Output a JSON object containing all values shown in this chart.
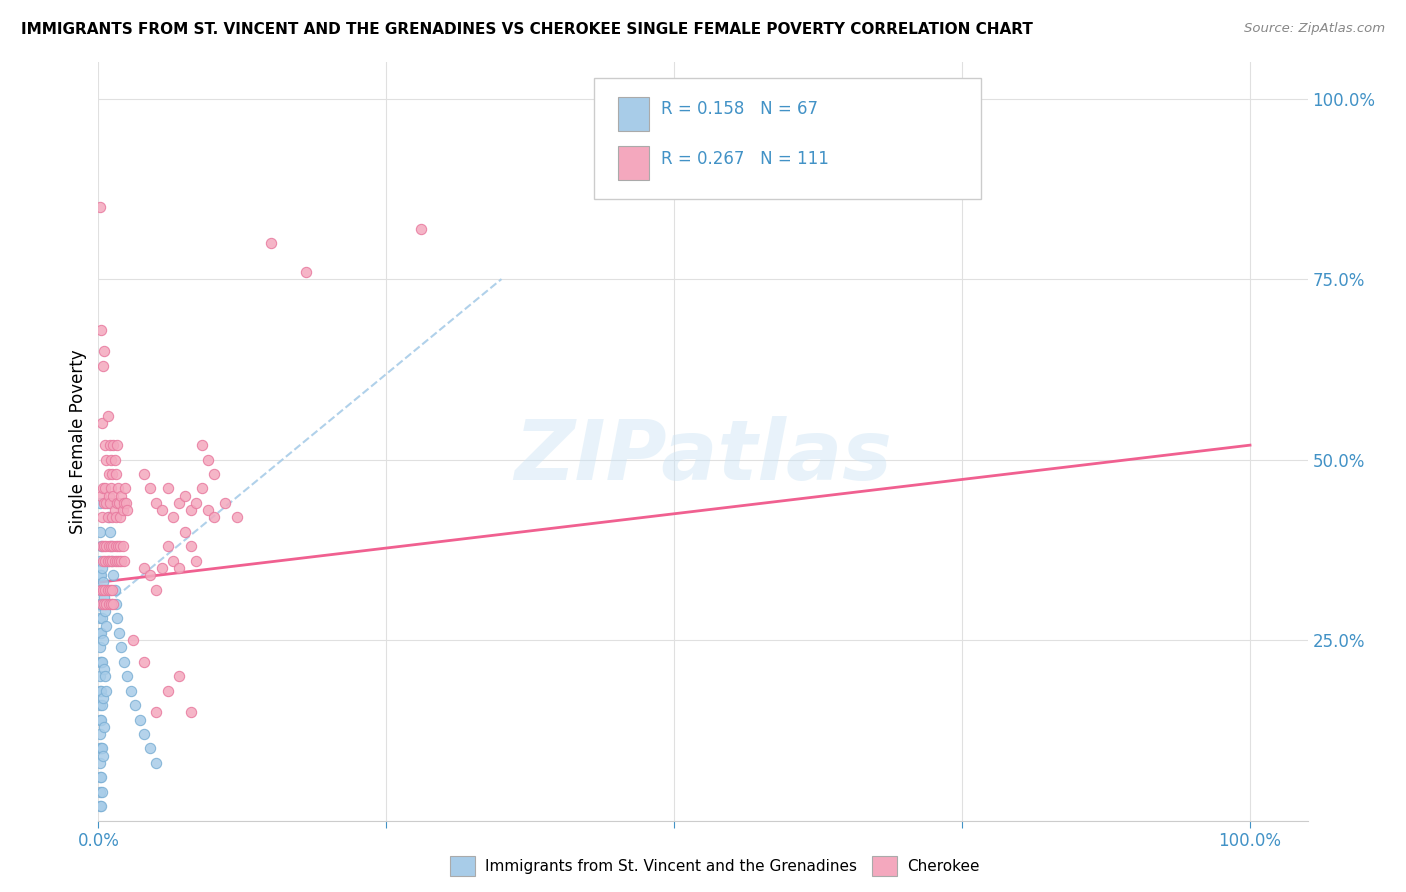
{
  "title": "IMMIGRANTS FROM ST. VINCENT AND THE GRENADINES VS CHEROKEE SINGLE FEMALE POVERTY CORRELATION CHART",
  "source": "Source: ZipAtlas.com",
  "ylabel": "Single Female Poverty",
  "watermark": "ZIPatlas",
  "legend_label1": "Immigrants from St. Vincent and the Grenadines",
  "legend_label2": "Cherokee",
  "blue_color": "#a8cce8",
  "blue_edge_color": "#7bafd4",
  "pink_color": "#f4a8be",
  "pink_edge_color": "#e87a9f",
  "blue_line_color": "#a8cce8",
  "pink_line_color": "#f06090",
  "tick_color": "#4292c6",
  "grid_color": "#e0e0e0",
  "blue_scatter": [
    [
      0.001,
      0.44
    ],
    [
      0.001,
      0.4
    ],
    [
      0.001,
      0.36
    ],
    [
      0.001,
      0.34
    ],
    [
      0.001,
      0.32
    ],
    [
      0.001,
      0.3
    ],
    [
      0.001,
      0.28
    ],
    [
      0.001,
      0.26
    ],
    [
      0.001,
      0.24
    ],
    [
      0.001,
      0.22
    ],
    [
      0.001,
      0.2
    ],
    [
      0.001,
      0.18
    ],
    [
      0.001,
      0.16
    ],
    [
      0.001,
      0.14
    ],
    [
      0.001,
      0.12
    ],
    [
      0.001,
      0.1
    ],
    [
      0.001,
      0.08
    ],
    [
      0.001,
      0.06
    ],
    [
      0.001,
      0.04
    ],
    [
      0.001,
      0.02
    ],
    [
      0.002,
      0.38
    ],
    [
      0.002,
      0.34
    ],
    [
      0.002,
      0.3
    ],
    [
      0.002,
      0.26
    ],
    [
      0.002,
      0.22
    ],
    [
      0.002,
      0.18
    ],
    [
      0.002,
      0.14
    ],
    [
      0.002,
      0.1
    ],
    [
      0.002,
      0.06
    ],
    [
      0.002,
      0.02
    ],
    [
      0.003,
      0.35
    ],
    [
      0.003,
      0.28
    ],
    [
      0.003,
      0.22
    ],
    [
      0.003,
      0.16
    ],
    [
      0.003,
      0.1
    ],
    [
      0.003,
      0.04
    ],
    [
      0.004,
      0.33
    ],
    [
      0.004,
      0.25
    ],
    [
      0.004,
      0.17
    ],
    [
      0.004,
      0.09
    ],
    [
      0.005,
      0.31
    ],
    [
      0.005,
      0.21
    ],
    [
      0.005,
      0.13
    ],
    [
      0.006,
      0.29
    ],
    [
      0.006,
      0.2
    ],
    [
      0.007,
      0.27
    ],
    [
      0.007,
      0.18
    ],
    [
      0.008,
      0.44
    ],
    [
      0.008,
      0.36
    ],
    [
      0.009,
      0.42
    ],
    [
      0.01,
      0.4
    ],
    [
      0.011,
      0.38
    ],
    [
      0.012,
      0.36
    ],
    [
      0.013,
      0.34
    ],
    [
      0.014,
      0.32
    ],
    [
      0.015,
      0.3
    ],
    [
      0.016,
      0.28
    ],
    [
      0.018,
      0.26
    ],
    [
      0.02,
      0.24
    ],
    [
      0.022,
      0.22
    ],
    [
      0.025,
      0.2
    ],
    [
      0.028,
      0.18
    ],
    [
      0.032,
      0.16
    ],
    [
      0.036,
      0.14
    ],
    [
      0.04,
      0.12
    ],
    [
      0.045,
      0.1
    ],
    [
      0.05,
      0.08
    ]
  ],
  "pink_scatter": [
    [
      0.001,
      0.85
    ],
    [
      0.002,
      0.68
    ],
    [
      0.004,
      0.63
    ],
    [
      0.005,
      0.65
    ],
    [
      0.003,
      0.55
    ],
    [
      0.006,
      0.52
    ],
    [
      0.007,
      0.5
    ],
    [
      0.008,
      0.56
    ],
    [
      0.009,
      0.48
    ],
    [
      0.01,
      0.52
    ],
    [
      0.011,
      0.5
    ],
    [
      0.012,
      0.48
    ],
    [
      0.013,
      0.52
    ],
    [
      0.014,
      0.5
    ],
    [
      0.015,
      0.48
    ],
    [
      0.016,
      0.52
    ],
    [
      0.002,
      0.45
    ],
    [
      0.003,
      0.42
    ],
    [
      0.004,
      0.46
    ],
    [
      0.005,
      0.44
    ],
    [
      0.006,
      0.46
    ],
    [
      0.007,
      0.44
    ],
    [
      0.008,
      0.42
    ],
    [
      0.009,
      0.45
    ],
    [
      0.01,
      0.44
    ],
    [
      0.011,
      0.46
    ],
    [
      0.012,
      0.42
    ],
    [
      0.013,
      0.45
    ],
    [
      0.014,
      0.43
    ],
    [
      0.015,
      0.42
    ],
    [
      0.016,
      0.44
    ],
    [
      0.017,
      0.46
    ],
    [
      0.018,
      0.44
    ],
    [
      0.019,
      0.42
    ],
    [
      0.02,
      0.45
    ],
    [
      0.021,
      0.43
    ],
    [
      0.022,
      0.44
    ],
    [
      0.023,
      0.46
    ],
    [
      0.024,
      0.44
    ],
    [
      0.025,
      0.43
    ],
    [
      0.003,
      0.38
    ],
    [
      0.004,
      0.36
    ],
    [
      0.005,
      0.38
    ],
    [
      0.006,
      0.36
    ],
    [
      0.007,
      0.38
    ],
    [
      0.008,
      0.36
    ],
    [
      0.009,
      0.38
    ],
    [
      0.01,
      0.36
    ],
    [
      0.011,
      0.38
    ],
    [
      0.012,
      0.36
    ],
    [
      0.013,
      0.38
    ],
    [
      0.014,
      0.36
    ],
    [
      0.015,
      0.38
    ],
    [
      0.016,
      0.36
    ],
    [
      0.017,
      0.38
    ],
    [
      0.018,
      0.36
    ],
    [
      0.019,
      0.38
    ],
    [
      0.02,
      0.36
    ],
    [
      0.021,
      0.38
    ],
    [
      0.022,
      0.36
    ],
    [
      0.002,
      0.32
    ],
    [
      0.003,
      0.3
    ],
    [
      0.004,
      0.32
    ],
    [
      0.005,
      0.3
    ],
    [
      0.006,
      0.32
    ],
    [
      0.007,
      0.3
    ],
    [
      0.008,
      0.32
    ],
    [
      0.009,
      0.3
    ],
    [
      0.01,
      0.32
    ],
    [
      0.011,
      0.3
    ],
    [
      0.012,
      0.32
    ],
    [
      0.013,
      0.3
    ],
    [
      0.04,
      0.48
    ],
    [
      0.045,
      0.46
    ],
    [
      0.05,
      0.44
    ],
    [
      0.055,
      0.43
    ],
    [
      0.06,
      0.46
    ],
    [
      0.065,
      0.42
    ],
    [
      0.07,
      0.44
    ],
    [
      0.075,
      0.45
    ],
    [
      0.08,
      0.43
    ],
    [
      0.085,
      0.44
    ],
    [
      0.09,
      0.46
    ],
    [
      0.095,
      0.43
    ],
    [
      0.04,
      0.35
    ],
    [
      0.045,
      0.34
    ],
    [
      0.05,
      0.32
    ],
    [
      0.055,
      0.35
    ],
    [
      0.06,
      0.38
    ],
    [
      0.065,
      0.36
    ],
    [
      0.07,
      0.35
    ],
    [
      0.075,
      0.4
    ],
    [
      0.08,
      0.38
    ],
    [
      0.085,
      0.36
    ],
    [
      0.03,
      0.25
    ],
    [
      0.04,
      0.22
    ],
    [
      0.06,
      0.18
    ],
    [
      0.07,
      0.2
    ],
    [
      0.08,
      0.15
    ],
    [
      0.05,
      0.15
    ],
    [
      0.1,
      0.42
    ],
    [
      0.11,
      0.44
    ],
    [
      0.12,
      0.42
    ],
    [
      0.55,
      1.0
    ],
    [
      0.28,
      0.82
    ],
    [
      0.18,
      0.76
    ],
    [
      0.15,
      0.8
    ],
    [
      0.09,
      0.52
    ],
    [
      0.095,
      0.5
    ],
    [
      0.1,
      0.48
    ]
  ],
  "blue_line_x": [
    0.0,
    0.35
  ],
  "blue_line_y_start": 0.29,
  "blue_line_y_end": 0.75,
  "pink_line_x": [
    0.0,
    1.0
  ],
  "pink_line_y_start": 0.33,
  "pink_line_y_end": 0.52,
  "ylim": [
    0.0,
    1.05
  ],
  "xlim": [
    0.0,
    1.05
  ],
  "yticks": [
    0.0,
    0.25,
    0.5,
    0.75,
    1.0
  ],
  "ytick_labels": [
    "",
    "25.0%",
    "50.0%",
    "75.0%",
    "100.0%"
  ],
  "xticks": [
    0.0,
    0.25,
    0.5,
    0.75,
    1.0
  ],
  "xtick_labels": [
    "0.0%",
    "",
    "",
    "",
    "100.0%"
  ]
}
